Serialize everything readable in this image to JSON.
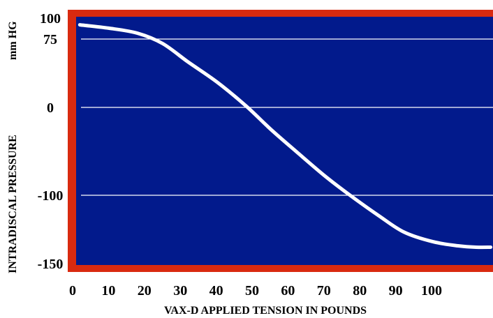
{
  "chart_data": {
    "type": "line",
    "title": "",
    "xlabel": "VAX-D APPLIED TENSION IN POUNDS",
    "ylabel": "INTRADISCAL PRESSURE",
    "ylabel_unit": "mm HG",
    "x_ticks": [
      "0",
      "10",
      "20",
      "30",
      "40",
      "50",
      "60",
      "70",
      "80",
      "90",
      "100"
    ],
    "y_ticks": [
      "100",
      "75",
      "0",
      "-100",
      "-150"
    ],
    "gridlines_at": [
      75,
      0,
      -100
    ],
    "grid": true,
    "colors": {
      "plot_background": "#021a8c",
      "frame": "#d92a10",
      "line": "#ffffff",
      "gridline": "#ffffff"
    },
    "series": [
      {
        "x": [
          2,
          10,
          18,
          25,
          32,
          40,
          48,
          55,
          62,
          70,
          77,
          85,
          92,
          100,
          107,
          112,
          116
        ],
        "y": [
          92,
          88,
          82,
          70,
          50,
          28,
          2,
          -25,
          -50,
          -78,
          -100,
          -115,
          -127,
          -134,
          -137,
          -138,
          -138
        ]
      }
    ]
  }
}
